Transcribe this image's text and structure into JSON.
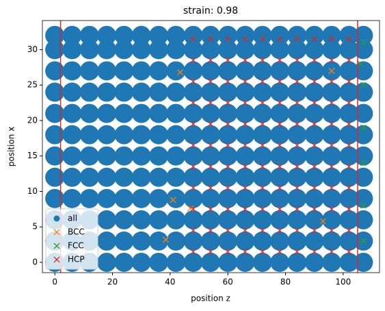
{
  "chart_data": {
    "type": "scatter",
    "title": "strain: 0.98",
    "x_label": "position z",
    "y_label": "position x",
    "xlim": [
      -4.3,
      112.6
    ],
    "ylim": [
      -1.45,
      34.1
    ],
    "xticks": [
      0,
      20,
      40,
      60,
      80,
      100
    ],
    "yticks": [
      0,
      5,
      10,
      15,
      20,
      25,
      30
    ],
    "legend": "lower left",
    "vlines": [
      {
        "x": 2,
        "color": "#d62728"
      },
      {
        "x": 105,
        "color": "#d62728"
      }
    ],
    "series": [
      {
        "name": "all",
        "marker": "o",
        "color": "#1f77b4",
        "x": [
          0,
          6,
          12,
          18,
          24,
          30,
          36,
          42,
          48,
          54,
          60,
          66,
          72,
          78,
          84,
          90,
          96,
          102,
          107,
          0,
          6,
          12,
          18,
          24,
          30,
          36,
          42,
          48,
          54,
          60,
          66,
          72,
          78,
          84,
          90,
          96,
          102,
          107,
          0,
          6,
          12,
          18,
          24,
          30,
          36,
          42,
          48,
          54,
          60,
          66,
          72,
          78,
          84,
          90,
          96,
          102,
          107,
          0,
          6,
          12,
          18,
          24,
          30,
          36,
          42,
          48,
          54,
          60,
          66,
          72,
          78,
          84,
          90,
          96,
          102,
          107,
          0,
          6,
          12,
          18,
          24,
          30,
          36,
          42,
          48,
          54,
          60,
          66,
          72,
          78,
          84,
          90,
          96,
          102,
          107,
          0,
          6,
          12,
          18,
          24,
          30,
          36,
          42,
          48,
          54,
          60,
          66,
          72,
          78,
          84,
          90,
          96,
          102,
          107,
          0,
          6,
          12,
          18,
          24,
          30,
          36,
          42,
          48,
          54,
          60,
          66,
          72,
          78,
          84,
          90,
          96,
          102,
          107,
          0,
          6,
          12,
          18,
          24,
          30,
          36,
          42,
          48,
          54,
          60,
          66,
          72,
          78,
          84,
          90,
          96,
          102,
          107,
          0,
          6,
          12,
          18,
          24,
          30,
          36,
          42,
          48,
          54,
          60,
          66,
          72,
          78,
          84,
          90,
          96,
          102,
          107,
          0,
          6,
          12,
          18,
          24,
          30,
          36,
          42,
          48,
          54,
          60,
          66,
          72,
          78,
          84,
          90,
          96,
          102,
          107,
          0,
          6,
          12,
          18,
          24,
          30,
          36,
          42,
          48,
          54,
          60,
          66,
          72,
          78,
          84,
          90,
          96,
          102,
          107,
          0,
          6,
          12,
          18,
          24,
          30,
          36,
          42,
          48,
          54,
          60,
          66,
          72,
          78,
          84,
          90,
          96,
          102,
          107
        ],
        "y": [
          0,
          0,
          0,
          0,
          0,
          0,
          0,
          0,
          0,
          0,
          0,
          0,
          0,
          0,
          0,
          0,
          0,
          0,
          0,
          3,
          3,
          3,
          3,
          3,
          3,
          3,
          3,
          3,
          3,
          3,
          3,
          3,
          3,
          3,
          3,
          3,
          3,
          3,
          6,
          6,
          6,
          6,
          6,
          6,
          6,
          6,
          6,
          6,
          6,
          6,
          6,
          6,
          6,
          6,
          6,
          6,
          6,
          9,
          9,
          9,
          9,
          9,
          9,
          9,
          9,
          9,
          9,
          9,
          9,
          9,
          9,
          9,
          9,
          9,
          9,
          9,
          12,
          12,
          12,
          12,
          12,
          12,
          12,
          12,
          12,
          12,
          12,
          12,
          12,
          12,
          12,
          12,
          12,
          12,
          12,
          15,
          15,
          15,
          15,
          15,
          15,
          15,
          15,
          15,
          15,
          15,
          15,
          15,
          15,
          15,
          15,
          15,
          15,
          15,
          18,
          18,
          18,
          18,
          18,
          18,
          18,
          18,
          18,
          18,
          18,
          18,
          18,
          18,
          18,
          18,
          18,
          18,
          18,
          21,
          21,
          21,
          21,
          21,
          21,
          21,
          21,
          21,
          21,
          21,
          21,
          21,
          21,
          21,
          21,
          21,
          21,
          21,
          24,
          24,
          24,
          24,
          24,
          24,
          24,
          24,
          24,
          24,
          24,
          24,
          24,
          24,
          24,
          24,
          24,
          24,
          24,
          27,
          27,
          27,
          27,
          27,
          27,
          27,
          27,
          27,
          27,
          27,
          27,
          27,
          27,
          27,
          27,
          27,
          27,
          27,
          30,
          30,
          30,
          30,
          30,
          30,
          30,
          30,
          30,
          30,
          30,
          30,
          30,
          30,
          30,
          30,
          30,
          30,
          30,
          32,
          32,
          32,
          32,
          32,
          32,
          32,
          32,
          32,
          32,
          32,
          32,
          32,
          32,
          32,
          32,
          32,
          32,
          32
        ]
      },
      {
        "name": "BCC",
        "marker": "x",
        "color": "#ff7f0e",
        "x": [
          43.5,
          41,
          38.5,
          47,
          96,
          93
        ],
        "y": [
          26.8,
          8.8,
          3.2,
          7.6,
          27,
          5.8
        ]
      },
      {
        "name": "FCC",
        "marker": "x",
        "color": "#2ca02c",
        "x": [
          107,
          107,
          107,
          107,
          107,
          107,
          106
        ],
        "y": [
          31,
          25,
          19,
          14,
          8,
          3,
          28
        ]
      },
      {
        "name": "HCP",
        "marker": "x",
        "color": "#d62728",
        "x": [
          48,
          54,
          60,
          66,
          72,
          78,
          84,
          90,
          96,
          102,
          48,
          54,
          60,
          66,
          72,
          78,
          84,
          90,
          96,
          102,
          48,
          54,
          60,
          66,
          72,
          78,
          84,
          90,
          96,
          102,
          48,
          54,
          60,
          66,
          72,
          78,
          84,
          90,
          96,
          102,
          48,
          54,
          60,
          66,
          72,
          78,
          84,
          90,
          96,
          102,
          48,
          54,
          60,
          66,
          72,
          78,
          84,
          90,
          96,
          102,
          48,
          54,
          60,
          66,
          72,
          78,
          84,
          90,
          96,
          102,
          48,
          54,
          60,
          66,
          72,
          78,
          84,
          90,
          96,
          102,
          48,
          54,
          60,
          66,
          72,
          78,
          84,
          90,
          96,
          102,
          48,
          54,
          60,
          66,
          72,
          78,
          84,
          90,
          96,
          102,
          48,
          54,
          60,
          66,
          72,
          78,
          84,
          90,
          96,
          102
        ],
        "y": [
          1.5,
          1.5,
          1.5,
          1.5,
          1.5,
          1.5,
          1.5,
          1.5,
          1.5,
          1.5,
          4.5,
          4.5,
          4.5,
          4.5,
          4.5,
          4.5,
          4.5,
          4.5,
          4.5,
          4.5,
          7.5,
          7.5,
          7.5,
          7.5,
          7.5,
          7.5,
          7.5,
          7.5,
          7.5,
          7.5,
          10.5,
          10.5,
          10.5,
          10.5,
          10.5,
          10.5,
          10.5,
          10.5,
          10.5,
          10.5,
          13.5,
          13.5,
          13.5,
          13.5,
          13.5,
          13.5,
          13.5,
          13.5,
          13.5,
          13.5,
          16.5,
          16.5,
          16.5,
          16.5,
          16.5,
          16.5,
          16.5,
          16.5,
          16.5,
          16.5,
          19.5,
          19.5,
          19.5,
          19.5,
          19.5,
          19.5,
          19.5,
          19.5,
          19.5,
          19.5,
          22.5,
          22.5,
          22.5,
          22.5,
          22.5,
          22.5,
          22.5,
          22.5,
          22.5,
          22.5,
          25.5,
          25.5,
          25.5,
          25.5,
          25.5,
          25.5,
          25.5,
          25.5,
          25.5,
          25.5,
          28.5,
          28.5,
          28.5,
          28.5,
          28.5,
          28.5,
          28.5,
          28.5,
          28.5,
          28.5,
          31.5,
          31.5,
          31.5,
          31.5,
          31.5,
          31.5,
          31.5,
          31.5,
          31.5,
          31.5
        ]
      }
    ]
  }
}
